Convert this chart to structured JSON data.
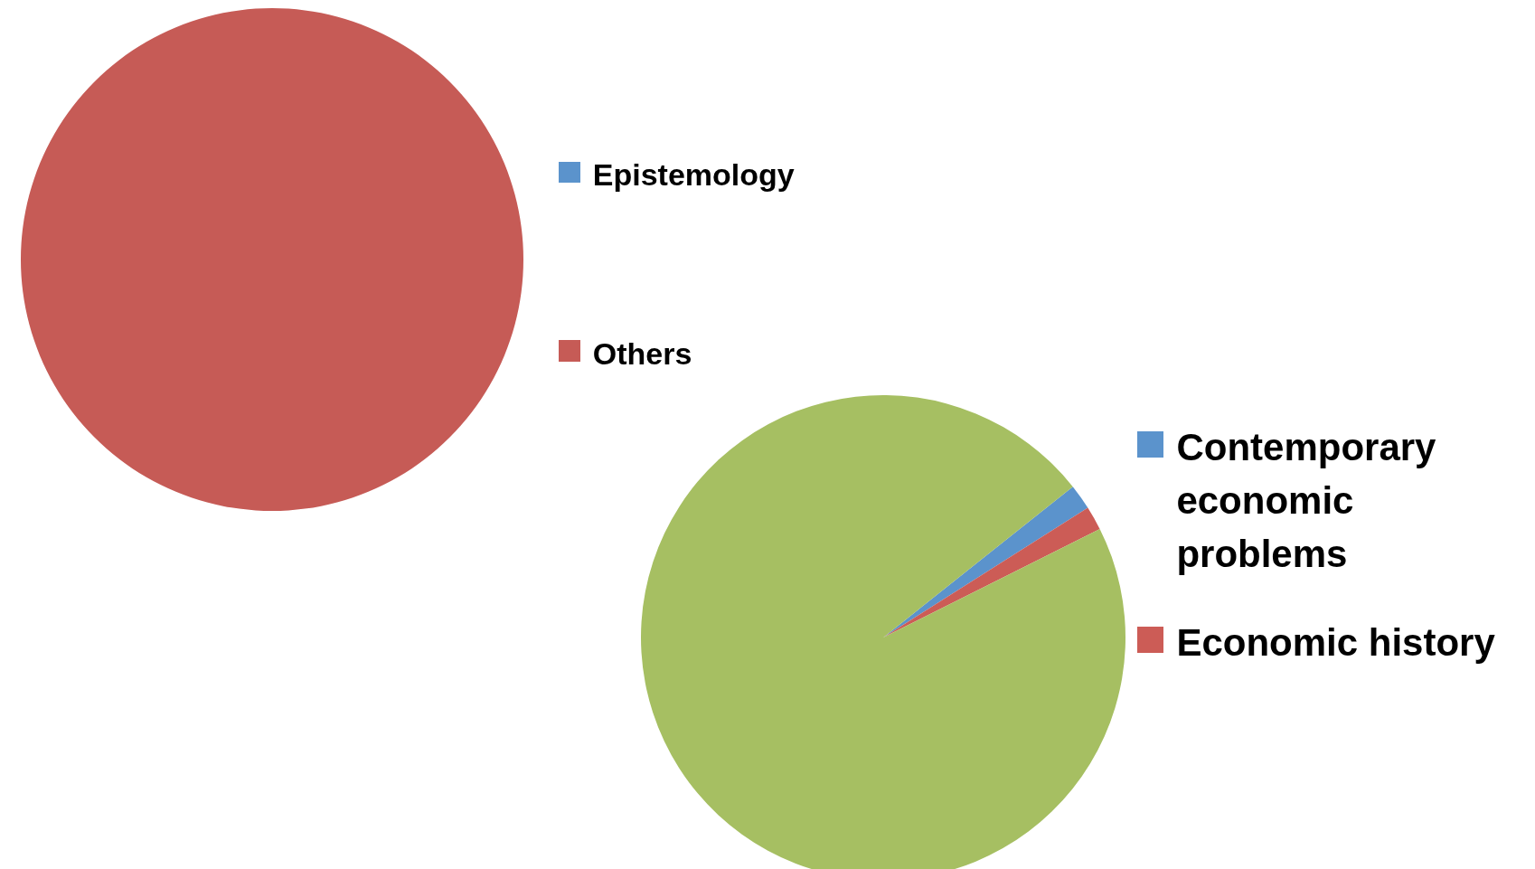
{
  "chart_data": [
    {
      "type": "pie",
      "categories": [
        "Epistemology",
        "Others"
      ],
      "values": [
        0,
        100
      ],
      "colors": [
        "#5b93cc",
        "#c65b56"
      ],
      "legend": "right"
    },
    {
      "type": "pie",
      "categories": [
        "Contemporary economic problems",
        "Economic history",
        null
      ],
      "values": [
        1.7,
        1.6,
        96.7
      ],
      "colors": [
        "#5b93cc",
        "#cc5c56",
        "#a6bf62"
      ],
      "legend": "right"
    }
  ]
}
